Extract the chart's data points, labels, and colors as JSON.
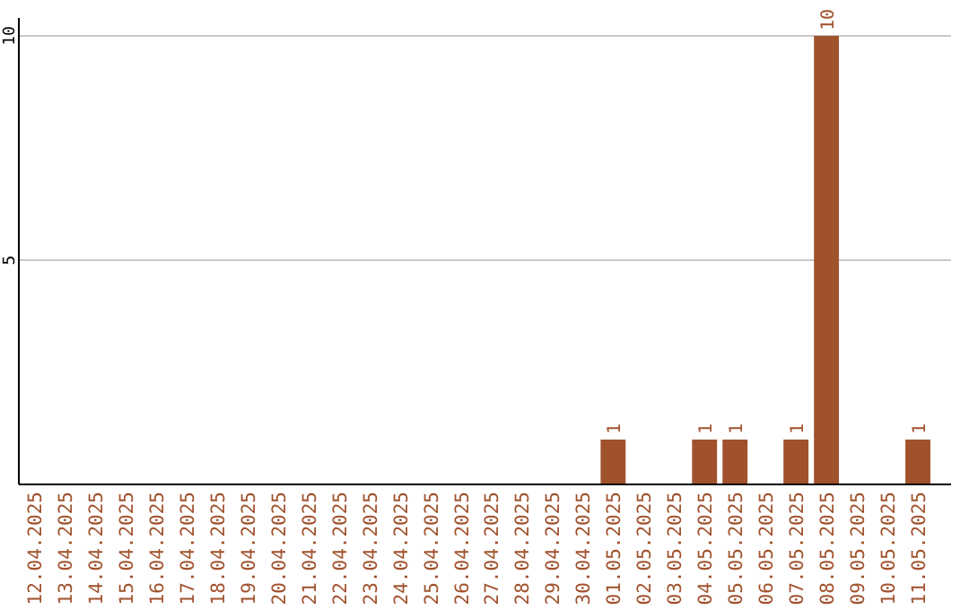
{
  "chart_data": {
    "type": "bar",
    "categories": [
      "12.04.2025",
      "13.04.2025",
      "14.04.2025",
      "15.04.2025",
      "16.04.2025",
      "17.04.2025",
      "18.04.2025",
      "19.04.2025",
      "20.04.2025",
      "21.04.2025",
      "22.04.2025",
      "23.04.2025",
      "24.04.2025",
      "25.04.2025",
      "26.04.2025",
      "27.04.2025",
      "28.04.2025",
      "29.04.2025",
      "30.04.2025",
      "01.05.2025",
      "02.05.2025",
      "03.05.2025",
      "04.05.2025",
      "05.05.2025",
      "06.05.2025",
      "07.05.2025",
      "08.05.2025",
      "09.05.2025",
      "10.05.2025",
      "11.05.2025"
    ],
    "values": [
      0,
      0,
      0,
      0,
      0,
      0,
      0,
      0,
      0,
      0,
      0,
      0,
      0,
      0,
      0,
      0,
      0,
      0,
      0,
      1,
      0,
      0,
      1,
      1,
      0,
      1,
      10,
      0,
      0,
      1
    ],
    "value_labels": [
      null,
      null,
      null,
      null,
      null,
      null,
      null,
      null,
      null,
      null,
      null,
      null,
      null,
      null,
      null,
      null,
      null,
      null,
      null,
      "1",
      null,
      null,
      "1",
      "1",
      null,
      "1",
      "10",
      null,
      null,
      "1"
    ],
    "color": "#a0522d",
    "ylim": [
      0,
      10.4
    ],
    "yticks": [
      5,
      10
    ],
    "grid": "y"
  }
}
